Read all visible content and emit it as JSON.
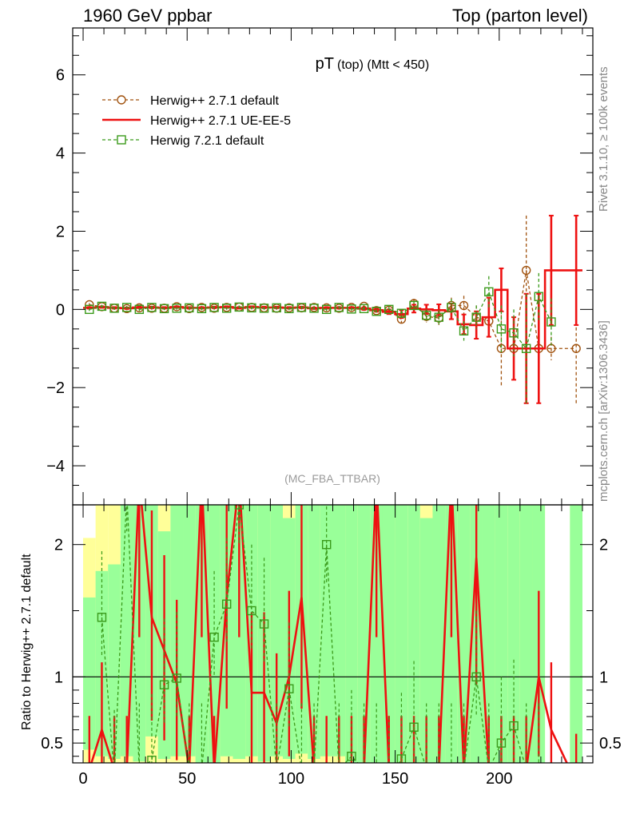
{
  "header": {
    "left": "1960 GeV ppbar",
    "right": "Top (parton level)"
  },
  "side_labels": {
    "rivet": "Rivet 3.1.10, ≥ 100k events",
    "mcplots": "mcplots.cern.ch [arXiv:1306.3436]"
  },
  "colors": {
    "herwig_default": "#a0520e",
    "herwig_ue": "#ee1111",
    "herwig7": "#3a9a1a",
    "band_yellow": "#ffff99",
    "band_green": "#99ff99"
  },
  "chart_data": [
    {
      "type": "line",
      "title": "pT",
      "title_sub": "(top) (Mtt < 450)",
      "watermark": "(MC_FBA_TTBAR)",
      "xlim": [
        -5,
        245
      ],
      "ylim": [
        -5,
        7.2
      ],
      "yticks": [
        "−4",
        "−2",
        "0",
        "2",
        "4",
        "6"
      ],
      "ytick_values": [
        -4,
        -2,
        0,
        2,
        4,
        6
      ],
      "legend": "top-left",
      "series": [
        {
          "name": "Herwig++ 2.7.1 default",
          "marker": "circle",
          "x": [
            3,
            9,
            15,
            21,
            27,
            33,
            39,
            45,
            51,
            57,
            63,
            69,
            75,
            81,
            87,
            93,
            99,
            105,
            111,
            117,
            123,
            129,
            135,
            141,
            147,
            153,
            159,
            165,
            171,
            177,
            183,
            189,
            195,
            201,
            207,
            213,
            219,
            225,
            237
          ],
          "y": [
            0.12,
            0.07,
            0.03,
            0.02,
            0.04,
            0.03,
            0.03,
            0.07,
            0.02,
            0.05,
            0.03,
            0.05,
            0.06,
            0.05,
            0.04,
            0.03,
            0.04,
            0.04,
            0.05,
            0.04,
            0.03,
            0.05,
            0.08,
            -0.03,
            -0.02,
            -0.25,
            0.15,
            -0.18,
            -0.22,
            0.1,
            0.1,
            -0.2,
            -0.3,
            -1.0,
            -1.0,
            1.0,
            -1.0,
            -1.0,
            -1.0
          ],
          "err": [
            0.04,
            0.04,
            0.04,
            0.04,
            0.04,
            0.04,
            0.04,
            0.04,
            0.04,
            0.04,
            0.04,
            0.04,
            0.04,
            0.04,
            0.04,
            0.04,
            0.04,
            0.04,
            0.04,
            0.04,
            0.04,
            0.04,
            0.05,
            0.05,
            0.06,
            0.1,
            0.12,
            0.15,
            0.18,
            0.2,
            0.25,
            0.3,
            0.4,
            1.0,
            0.6,
            1.4,
            0.3,
            0.3,
            1.4
          ]
        },
        {
          "name": "Herwig++ 2.7.1 UE-EE-5",
          "marker": "none",
          "x": [
            3,
            9,
            15,
            21,
            27,
            33,
            39,
            45,
            51,
            57,
            63,
            69,
            75,
            81,
            87,
            93,
            99,
            105,
            111,
            117,
            123,
            129,
            135,
            141,
            147,
            153,
            159,
            165,
            171,
            177,
            183,
            189,
            195,
            201,
            207,
            213,
            219,
            225,
            237
          ],
          "y": [
            0.04,
            0.06,
            0.04,
            0.03,
            0.05,
            0.05,
            0.04,
            0.06,
            0.04,
            0.04,
            0.05,
            0.06,
            0.04,
            0.06,
            0.05,
            0.05,
            0.04,
            0.05,
            0.03,
            0.04,
            0.04,
            0.04,
            0.02,
            -0.02,
            -0.06,
            -0.12,
            0.02,
            0.0,
            -0.02,
            -0.05,
            -0.38,
            -0.4,
            -0.2,
            0.5,
            -1.0,
            -1.0,
            -1.0,
            1.0,
            1.0
          ],
          "err": [
            0.02,
            0.02,
            0.02,
            0.02,
            0.02,
            0.02,
            0.02,
            0.02,
            0.02,
            0.02,
            0.02,
            0.02,
            0.02,
            0.02,
            0.02,
            0.02,
            0.02,
            0.02,
            0.02,
            0.02,
            0.02,
            0.02,
            0.03,
            0.04,
            0.06,
            0.1,
            0.1,
            0.12,
            0.15,
            0.2,
            0.25,
            0.35,
            0.5,
            0.55,
            0.8,
            1.4,
            1.4,
            1.4,
            1.4
          ]
        },
        {
          "name": "Herwig 7.2.1 default",
          "marker": "square",
          "x": [
            3,
            9,
            15,
            21,
            27,
            33,
            39,
            45,
            51,
            57,
            63,
            69,
            75,
            81,
            87,
            93,
            99,
            105,
            111,
            117,
            123,
            129,
            135,
            141,
            147,
            153,
            159,
            165,
            171,
            177,
            183,
            189,
            195,
            201,
            207,
            213,
            219,
            225
          ],
          "y": [
            0.0,
            0.08,
            0.03,
            0.05,
            0.0,
            0.05,
            0.02,
            0.03,
            0.04,
            0.02,
            0.05,
            0.03,
            0.06,
            0.04,
            0.03,
            0.04,
            0.02,
            0.05,
            0.03,
            0.0,
            0.05,
            0.01,
            0.02,
            -0.05,
            0.0,
            -0.1,
            0.1,
            -0.15,
            -0.2,
            0.05,
            -0.55,
            -0.2,
            0.45,
            -0.5,
            -0.6,
            -1.0,
            0.33,
            -0.32
          ],
          "err": [
            0.04,
            0.04,
            0.04,
            0.04,
            0.04,
            0.04,
            0.04,
            0.04,
            0.04,
            0.04,
            0.04,
            0.04,
            0.04,
            0.04,
            0.04,
            0.04,
            0.04,
            0.04,
            0.04,
            0.04,
            0.04,
            0.04,
            0.05,
            0.05,
            0.07,
            0.1,
            0.12,
            0.15,
            0.18,
            0.22,
            0.25,
            0.3,
            0.4,
            0.6,
            0.6,
            1.4,
            0.6,
            0.6
          ]
        }
      ]
    },
    {
      "type": "line",
      "ylabel": "Ratio to Herwig++ 2.7.1 default",
      "xlim": [
        -5,
        245
      ],
      "ylim": [
        0.35,
        2.3
      ],
      "xticks": [
        "0",
        "50",
        "100",
        "150",
        "200"
      ],
      "xtick_values": [
        0,
        50,
        100,
        150,
        200
      ],
      "yticks": [
        "0.5",
        "1",
        "2"
      ],
      "ytick_values": [
        0.5,
        1,
        2
      ],
      "reference_line": 1,
      "bands": {
        "x_edges": [
          0,
          6,
          12,
          18,
          24,
          30,
          36,
          42,
          48,
          54,
          60,
          66,
          72,
          78,
          84,
          90,
          96,
          102,
          108,
          114,
          120,
          126,
          132,
          138,
          144,
          150,
          156,
          162,
          168,
          174,
          180,
          186,
          192,
          198,
          204,
          210,
          216,
          222,
          228,
          234,
          240
        ],
        "yellow_low": [
          0.35,
          0.35,
          0.35,
          0.35,
          0.35,
          0.35,
          0.35,
          0.35,
          0.35,
          0.35,
          0.35,
          0.35,
          0.35,
          0.35,
          0.35,
          0.35,
          0.35,
          0.35,
          0.35,
          0.35,
          0.35,
          0.35,
          0.35,
          0.35,
          0.35,
          0.35,
          0.35,
          0.35,
          0.35,
          0.35,
          0.35,
          0.35,
          0.35,
          0.35,
          0.35,
          0.35,
          0.35,
          null,
          null,
          0.35
        ],
        "yellow_high": [
          2.05,
          2.3,
          2.3,
          2.3,
          2.3,
          2.3,
          2.3,
          2.3,
          2.3,
          2.3,
          2.3,
          2.3,
          2.3,
          2.3,
          2.3,
          2.3,
          2.3,
          2.3,
          2.3,
          2.3,
          2.3,
          2.3,
          2.3,
          2.3,
          2.3,
          2.3,
          2.3,
          2.3,
          2.3,
          2.3,
          2.3,
          2.3,
          2.3,
          2.3,
          2.3,
          2.3,
          2.3,
          null,
          null,
          2.3
        ],
        "green_low": [
          0.45,
          0.4,
          0.38,
          0.4,
          0.36,
          0.55,
          0.38,
          0.4,
          0.4,
          0.35,
          0.35,
          0.4,
          0.38,
          0.4,
          0.36,
          0.4,
          0.38,
          0.42,
          0.38,
          0.4,
          0.4,
          0.35,
          0.35,
          0.35,
          0.35,
          0.35,
          0.35,
          0.35,
          0.35,
          0.35,
          0.35,
          0.35,
          0.35,
          0.35,
          0.35,
          0.35,
          0.35,
          null,
          null,
          0.35
        ],
        "green_high": [
          1.6,
          1.8,
          1.85,
          2.3,
          2.3,
          2.3,
          2.1,
          2.3,
          2.3,
          2.3,
          2.3,
          2.3,
          2.3,
          2.3,
          2.3,
          2.3,
          2.2,
          2.3,
          2.3,
          2.3,
          2.3,
          2.3,
          2.3,
          2.3,
          2.3,
          2.3,
          2.3,
          2.2,
          2.3,
          2.3,
          2.3,
          2.3,
          2.3,
          2.3,
          2.3,
          2.3,
          2.3,
          null,
          null,
          2.3
        ]
      },
      "series": [
        {
          "name": "Herwig++ 2.7.1 UE-EE-5",
          "marker": "none",
          "x": [
            3,
            9,
            15,
            21,
            27,
            33,
            39,
            45,
            51,
            57,
            63,
            69,
            75,
            81,
            87,
            93,
            99,
            105,
            111,
            117,
            123,
            129,
            135,
            141,
            147,
            153,
            159,
            165,
            171,
            177,
            183,
            189,
            195,
            201,
            207,
            213,
            219,
            225,
            237
          ],
          "y": [
            0.3,
            0.6,
            0.3,
            0.3,
            2.5,
            1.45,
            1.2,
            0.95,
            0.3,
            2.5,
            0.3,
            1.6,
            2.5,
            0.88,
            0.88,
            0.65,
            1.0,
            1.6,
            0.3,
            0.3,
            0.3,
            0.3,
            0.3,
            2.5,
            0.3,
            0.3,
            0.3,
            0.3,
            0.3,
            2.5,
            0.3,
            1.9,
            0.3,
            0.3,
            0.3,
            0.3,
            1.0,
            0.6,
            0.2
          ]
        },
        {
          "name": "Herwig 7.2.1 default",
          "marker": "square",
          "x": [
            9,
            15,
            21,
            27,
            33,
            39,
            45,
            51,
            57,
            63,
            69,
            75,
            81,
            87,
            93,
            99,
            105,
            111,
            117,
            123,
            129,
            135,
            141,
            147,
            153,
            159,
            165,
            171,
            177,
            183,
            189,
            195,
            201,
            207,
            213,
            219
          ],
          "y": [
            1.45,
            0.25,
            2.4,
            0.3,
            0.37,
            0.94,
            0.99,
            0.3,
            0.3,
            1.3,
            1.55,
            2.3,
            1.5,
            1.4,
            0.3,
            0.91,
            0.3,
            0.3,
            2.0,
            0.3,
            0.4,
            0.3,
            0.3,
            0.2,
            0.38,
            0.62,
            0.3,
            0.3,
            0.3,
            0.3,
            1.0,
            0.3,
            0.5,
            0.63,
            0.3,
            0.3
          ]
        }
      ]
    }
  ]
}
